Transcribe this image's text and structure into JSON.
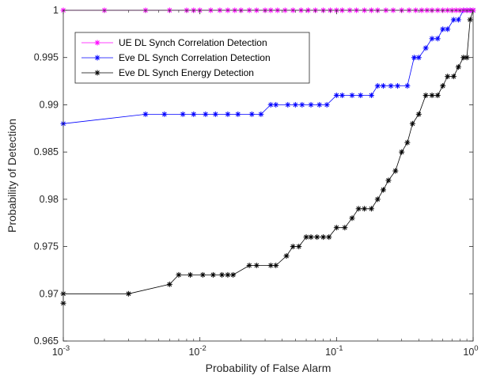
{
  "chart_data": {
    "type": "line",
    "title": "",
    "xlabel": "Probability of False Alarm",
    "ylabel": "Probability of Detection",
    "x_scale": "log",
    "xlim": [
      0.001,
      1
    ],
    "ylim": [
      0.965,
      1.0
    ],
    "x_ticks": [
      {
        "value": 0.001,
        "base": "10",
        "exp": "-3"
      },
      {
        "value": 0.01,
        "base": "10",
        "exp": "-2"
      },
      {
        "value": 0.1,
        "base": "10",
        "exp": "-1"
      },
      {
        "value": 1,
        "base": "10",
        "exp": "0"
      }
    ],
    "y_ticks": [
      {
        "value": 0.965,
        "label": "0.965"
      },
      {
        "value": 0.97,
        "label": "0.97"
      },
      {
        "value": 0.975,
        "label": "0.975"
      },
      {
        "value": 0.98,
        "label": "0.98"
      },
      {
        "value": 0.985,
        "label": "0.985"
      },
      {
        "value": 0.99,
        "label": "0.99"
      },
      {
        "value": 0.995,
        "label": "0.995"
      },
      {
        "value": 1.0,
        "label": "1"
      }
    ],
    "grid": false,
    "legend_position": "top-left",
    "series": [
      {
        "name": "UE DL Synch Correlation Detection",
        "color": "#ff00ff",
        "marker": "asterisk",
        "x": [
          0.001,
          0.002,
          0.004,
          0.006,
          0.008,
          0.009,
          0.01,
          0.012,
          0.014,
          0.016,
          0.018,
          0.02,
          0.023,
          0.026,
          0.03,
          0.033,
          0.037,
          0.042,
          0.048,
          0.055,
          0.062,
          0.07,
          0.08,
          0.09,
          0.1,
          0.11,
          0.125,
          0.14,
          0.16,
          0.18,
          0.2,
          0.23,
          0.26,
          0.3,
          0.34,
          0.38,
          0.42,
          0.46,
          0.5,
          0.55,
          0.6,
          0.65,
          0.7,
          0.75,
          0.8,
          0.85,
          0.9,
          0.95,
          1.0
        ],
        "y": [
          1,
          1,
          1,
          1,
          1,
          1,
          1,
          1,
          1,
          1,
          1,
          1,
          1,
          1,
          1,
          1,
          1,
          1,
          1,
          1,
          1,
          1,
          1,
          1,
          1,
          1,
          1,
          1,
          1,
          1,
          1,
          1,
          1,
          1,
          1,
          1,
          1,
          1,
          1,
          1,
          1,
          1,
          1,
          1,
          1,
          1,
          1,
          1,
          1
        ]
      },
      {
        "name": "Eve DL Synch Correlation Detection",
        "color": "#0000ff",
        "marker": "asterisk",
        "x": [
          0.001,
          0.004,
          0.0055,
          0.0075,
          0.009,
          0.011,
          0.013,
          0.016,
          0.019,
          0.024,
          0.028,
          0.033,
          0.036,
          0.044,
          0.05,
          0.056,
          0.065,
          0.075,
          0.085,
          0.1,
          0.11,
          0.13,
          0.15,
          0.18,
          0.2,
          0.22,
          0.25,
          0.28,
          0.33,
          0.37,
          0.4,
          0.45,
          0.5,
          0.55,
          0.6,
          0.65,
          0.72,
          0.78,
          0.85,
          0.9,
          0.95,
          1.0
        ],
        "y": [
          0.988,
          0.989,
          0.989,
          0.989,
          0.989,
          0.989,
          0.989,
          0.989,
          0.989,
          0.989,
          0.989,
          0.99,
          0.99,
          0.99,
          0.99,
          0.99,
          0.99,
          0.99,
          0.99,
          0.991,
          0.991,
          0.991,
          0.991,
          0.991,
          0.992,
          0.992,
          0.992,
          0.992,
          0.992,
          0.995,
          0.995,
          0.996,
          0.997,
          0.997,
          0.998,
          0.998,
          0.999,
          0.999,
          1.0,
          1.0,
          1.0,
          1.0
        ]
      },
      {
        "name": "Eve DL Synch Energy Detection",
        "color": "#000000",
        "marker": "asterisk",
        "x": [
          0.001,
          0.001,
          0.003,
          0.006,
          0.007,
          0.0085,
          0.0105,
          0.0125,
          0.0145,
          0.016,
          0.0175,
          0.023,
          0.026,
          0.033,
          0.036,
          0.043,
          0.048,
          0.053,
          0.06,
          0.065,
          0.072,
          0.08,
          0.088,
          0.1,
          0.115,
          0.13,
          0.145,
          0.16,
          0.18,
          0.2,
          0.22,
          0.24,
          0.27,
          0.3,
          0.33,
          0.36,
          0.4,
          0.45,
          0.5,
          0.55,
          0.6,
          0.65,
          0.72,
          0.78,
          0.85,
          0.9,
          0.95,
          1.0
        ],
        "y": [
          0.969,
          0.97,
          0.97,
          0.971,
          0.972,
          0.972,
          0.972,
          0.972,
          0.972,
          0.972,
          0.972,
          0.973,
          0.973,
          0.973,
          0.973,
          0.974,
          0.975,
          0.975,
          0.976,
          0.976,
          0.976,
          0.976,
          0.976,
          0.977,
          0.977,
          0.978,
          0.979,
          0.979,
          0.979,
          0.98,
          0.981,
          0.982,
          0.983,
          0.985,
          0.986,
          0.988,
          0.989,
          0.991,
          0.991,
          0.991,
          0.992,
          0.993,
          0.993,
          0.994,
          0.995,
          0.995,
          0.999,
          1.0
        ]
      }
    ]
  }
}
